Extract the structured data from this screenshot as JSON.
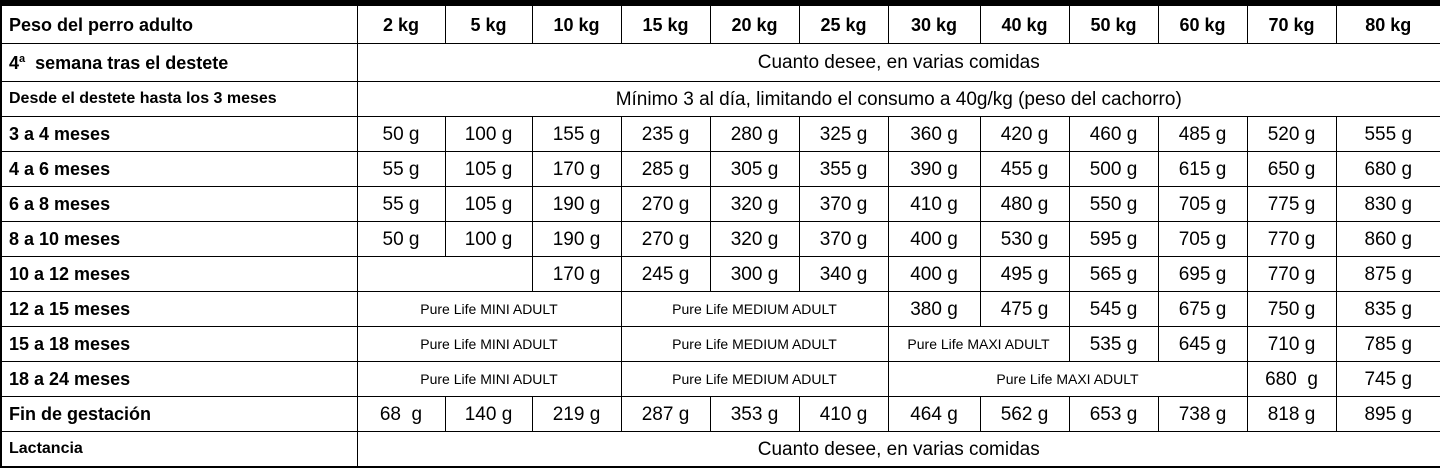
{
  "header": {
    "label": "Peso del perro adulto",
    "weights": [
      "2 kg",
      "5 kg",
      "10 kg",
      "15 kg",
      "20 kg",
      "25 kg",
      "30 kg",
      "40 kg",
      "50 kg",
      "60 kg",
      "70 kg",
      "80 kg"
    ]
  },
  "rows": {
    "week4": {
      "label_num": "4",
      "label_sup": "a",
      "label_rest": "semana tras el destete",
      "text": "Cuanto desee, en varias comidas"
    },
    "weaning": {
      "label": "Desde el destete hasta los 3 meses",
      "text": "Mínimo 3 al día, limitando el consumo a 40g/kg (peso del cachorro)"
    },
    "m3_4": {
      "label": "3 a 4 meses",
      "values": [
        "50 g",
        "100 g",
        "155 g",
        "235 g",
        "280 g",
        "325 g",
        "360 g",
        "420 g",
        "460 g",
        "485 g",
        "520 g",
        "555 g"
      ]
    },
    "m4_6": {
      "label": "4 a 6 meses",
      "values": [
        "55 g",
        "105 g",
        "170 g",
        "285 g",
        "305 g",
        "355 g",
        "390 g",
        "455 g",
        "500 g",
        "615 g",
        "650 g",
        "680 g"
      ]
    },
    "m6_8": {
      "label": "6 a 8 meses",
      "values": [
        "55 g",
        "105 g",
        "190 g",
        "270 g",
        "320 g",
        "370 g",
        "410 g",
        "480 g",
        "550 g",
        "705 g",
        "775 g",
        "830 g"
      ]
    },
    "m8_10": {
      "label": "8 a 10 meses",
      "values": [
        "50 g",
        "100 g",
        "190 g",
        "270 g",
        "320 g",
        "370 g",
        "400 g",
        "530 g",
        "595 g",
        "705 g",
        "770 g",
        "860 g"
      ]
    },
    "m10_12": {
      "label": "10 a 12 meses",
      "values": [
        "170 g",
        "245 g",
        "300 g",
        "340 g",
        "400 g",
        "495 g",
        "565 g",
        "695 g",
        "770 g",
        "875 g"
      ]
    },
    "m12_15": {
      "label": "12 a 15 meses",
      "mini": "Pure Life MINI ADULT",
      "medium": "Pure Life MEDIUM ADULT",
      "values": [
        "380 g",
        "475 g",
        "545 g",
        "675 g",
        "750 g",
        "835 g"
      ]
    },
    "m15_18": {
      "label": "15 a 18 meses",
      "mini": "Pure Life MINI ADULT",
      "medium": "Pure Life MEDIUM ADULT",
      "maxi": "Pure Life MAXI ADULT",
      "values": [
        "535 g",
        "645 g",
        "710 g",
        "785 g"
      ]
    },
    "m18_24": {
      "label": "18 a 24 meses",
      "mini": "Pure Life MINI ADULT",
      "medium": "Pure Life MEDIUM ADULT",
      "maxi": "Pure Life MAXI ADULT",
      "values": [
        "680  g",
        "745 g"
      ]
    },
    "gestation": {
      "label": "Fin de gestación",
      "values": [
        "68  g",
        "140 g",
        "219 g",
        "287 g",
        "353 g",
        "410 g",
        "464 g",
        "562 g",
        "653 g",
        "738 g",
        "818 g",
        "895 g"
      ]
    },
    "lactation": {
      "label": "Lactancia",
      "text": "Cuanto desee, en varias comidas"
    }
  }
}
